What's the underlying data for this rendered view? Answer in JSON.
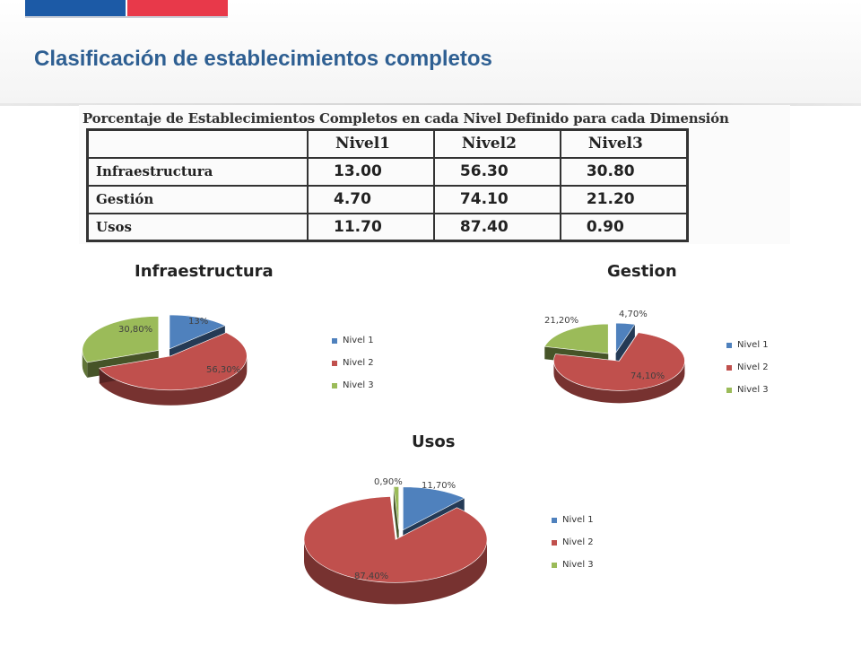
{
  "page": {
    "title": "Clasificación de establecimientos completos"
  },
  "colors": {
    "nivel1": "#4f81bd",
    "nivel2": "#c0504d",
    "nivel3": "#9bbb59",
    "title": "#2e5f92"
  },
  "table": {
    "caption": "Porcentaje de Establecimientos Completos en cada Nivel Definido para cada Dimensión",
    "headers": [
      "",
      "Nivel1",
      "Nivel2",
      "Nivel3"
    ],
    "rows": [
      {
        "label": "Infraestructura",
        "values": [
          "13.00",
          "56.30",
          "30.80"
        ]
      },
      {
        "label": "Gestión",
        "values": [
          "4.70",
          "74.10",
          "21.20"
        ]
      },
      {
        "label": "Usos",
        "values": [
          "11.70",
          "87.40",
          "0.90"
        ]
      }
    ]
  },
  "chart_data": [
    {
      "type": "pie",
      "title": "Infraestructura",
      "categories": [
        "Nivel 1",
        "Nivel 2",
        "Nivel 3"
      ],
      "values": [
        13.0,
        56.3,
        30.8
      ],
      "labels": [
        "13%",
        "56,30%",
        "30,80%"
      ],
      "legend": "right"
    },
    {
      "type": "pie",
      "title": "Gestion",
      "categories": [
        "Nivel 1",
        "Nivel 2",
        "Nivel 3"
      ],
      "values": [
        4.7,
        74.1,
        21.2
      ],
      "labels": [
        "4,70%",
        "74,10%",
        "21,20%"
      ],
      "legend": "right"
    },
    {
      "type": "pie",
      "title": "Usos",
      "categories": [
        "Nivel 1",
        "Nivel 2",
        "Nivel 3"
      ],
      "values": [
        11.7,
        87.4,
        0.9
      ],
      "labels": [
        "11,70%",
        "87,40%",
        "0,90%"
      ],
      "legend": "right"
    }
  ]
}
